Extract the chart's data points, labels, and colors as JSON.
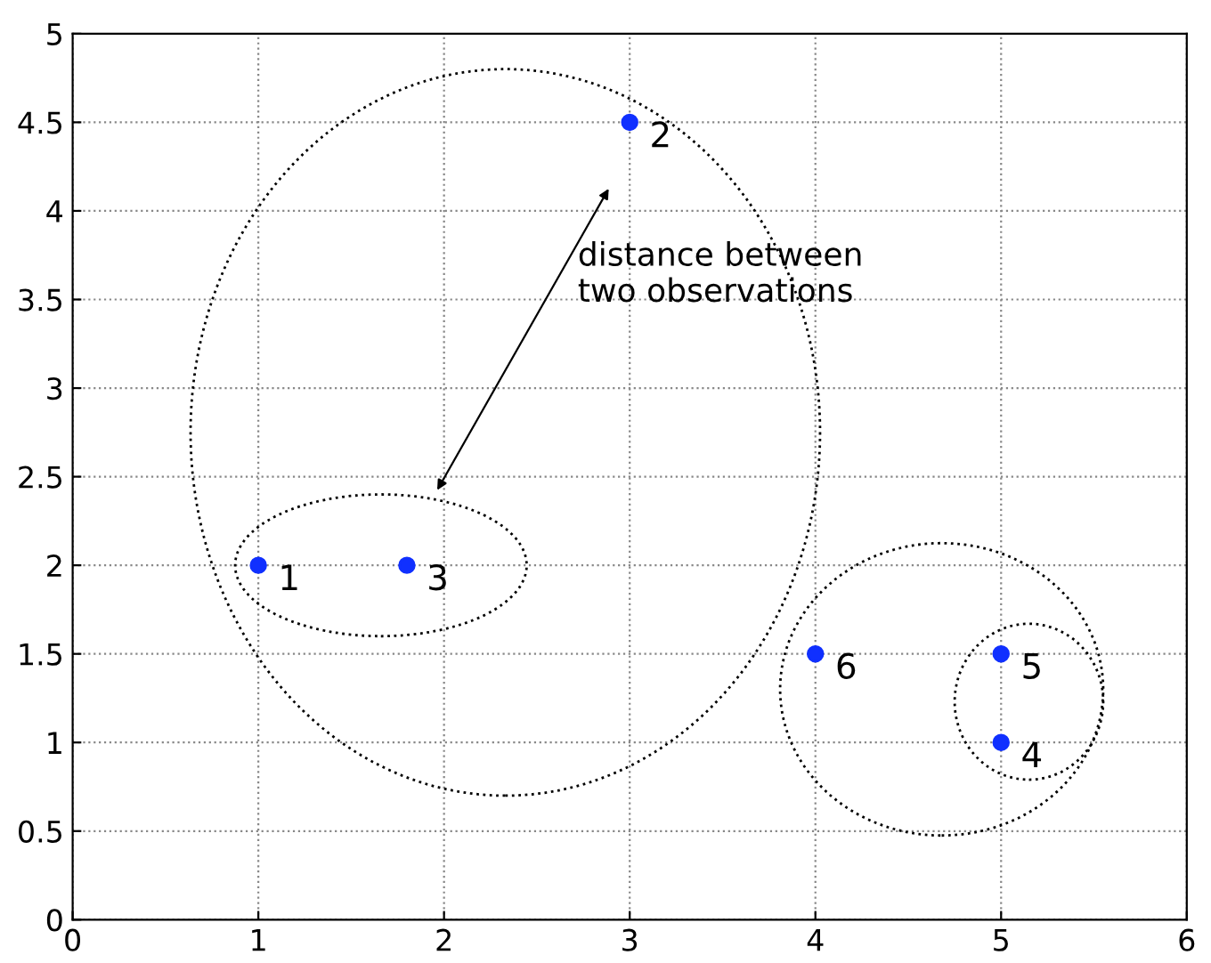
{
  "chart_data": {
    "type": "scatter",
    "x": [
      1,
      3,
      1.8,
      5,
      5,
      4
    ],
    "values": [
      2,
      4.5,
      2,
      1,
      1.5,
      1.5
    ],
    "color": "#1030ff",
    "marker": "circle",
    "xlim": [
      0,
      6
    ],
    "xticks": [
      0,
      1,
      2,
      3,
      4,
      5,
      6
    ],
    "ylim": [
      0,
      5
    ],
    "yticks": [
      0,
      0.5,
      1,
      1.5,
      2,
      2.5,
      3,
      3.5,
      4,
      4.5,
      5
    ],
    "grid": true,
    "annotations": [
      {
        "text": "1",
        "x": 1,
        "y": 2
      },
      {
        "text": "2",
        "x": 3,
        "y": 4.5
      },
      {
        "text": "3",
        "x": 1.8,
        "y": 2
      },
      {
        "text": "4",
        "x": 5,
        "y": 1
      },
      {
        "text": "5",
        "x": 5,
        "y": 1.5
      },
      {
        "text": "6",
        "x": 4,
        "y": 1.5
      },
      "distance between\ntwo observations"
    ]
  }
}
